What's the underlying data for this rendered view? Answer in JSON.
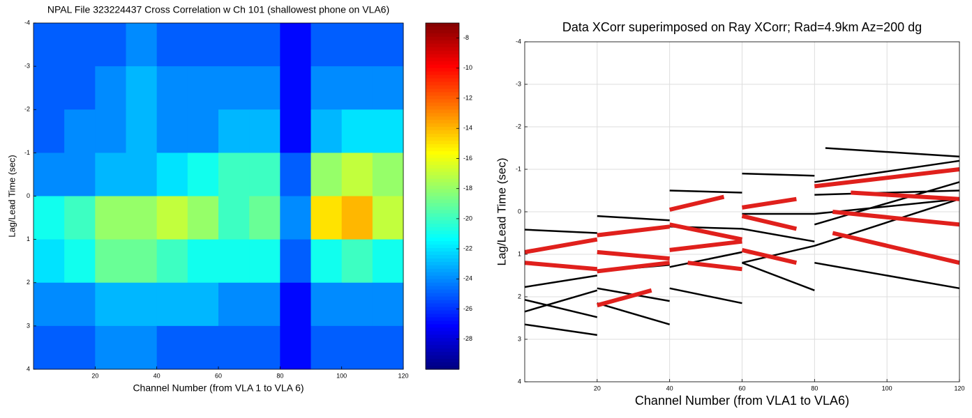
{
  "chart_data": [
    {
      "type": "heatmap",
      "title": "NPAL File 323224437 Cross Correlation w Ch 101 (shallowest phone on VLA6)",
      "xlabel": "Channel Number (from VLA 1 to VLA 6)",
      "ylabel": "Lag/Lead Time (sec)",
      "x": [
        5,
        15,
        25,
        35,
        45,
        55,
        65,
        75,
        85,
        95,
        105,
        115
      ],
      "y": [
        -3.5,
        -2.5,
        -1.5,
        -0.5,
        0.5,
        1.5,
        2.5,
        3.5
      ],
      "z": [
        [
          -25,
          -25,
          -25,
          -24,
          -25,
          -25,
          -25,
          -25,
          -27,
          -25,
          -25,
          -25
        ],
        [
          -25,
          -25,
          -24,
          -23,
          -24,
          -24,
          -24,
          -24,
          -27,
          -24,
          -24,
          -24
        ],
        [
          -25,
          -24,
          -24,
          -23,
          -24,
          -24,
          -23,
          -23,
          -27,
          -23,
          -22,
          -22
        ],
        [
          -24,
          -24,
          -23,
          -23,
          -22,
          -21,
          -20,
          -20,
          -25,
          -18,
          -17,
          -18
        ],
        [
          -21,
          -20,
          -18,
          -18,
          -17,
          -18,
          -20,
          -19,
          -24,
          -15,
          -14,
          -17
        ],
        [
          -22,
          -21,
          -19,
          -19,
          -20,
          -21,
          -21,
          -21,
          -25,
          -21,
          -20,
          -21
        ],
        [
          -24,
          -24,
          -23,
          -23,
          -23,
          -23,
          -24,
          -24,
          -27,
          -24,
          -24,
          -24
        ],
        [
          -25,
          -25,
          -24,
          -24,
          -25,
          -25,
          -25,
          -25,
          -27,
          -25,
          -25,
          -25
        ]
      ],
      "colormap": "jet",
      "clim": [
        -30,
        -7
      ],
      "cticks": [
        -8,
        -10,
        -12,
        -14,
        -16,
        -18,
        -20,
        -22,
        -24,
        -26,
        -28
      ],
      "xlim": [
        0,
        120
      ],
      "xticks": [
        20,
        40,
        60,
        80,
        100,
        120
      ],
      "ylim": [
        -4,
        4
      ],
      "yticks": [
        -4,
        -3,
        -2,
        -1,
        0,
        1,
        2,
        3,
        4
      ],
      "y_reversed": true
    },
    {
      "type": "line",
      "title": "Data XCorr superimposed on Ray XCorr; Rad=4.9km Az=200 dg",
      "xlabel": "Channel Number (from VLA1 to VLA6)",
      "ylabel": "Lag/Lead Time (sec)",
      "xlim": [
        0,
        120
      ],
      "xticks": [
        20,
        40,
        60,
        80,
        100,
        120
      ],
      "ylim": [
        -4,
        4
      ],
      "yticks": [
        -4,
        -3,
        -2,
        -1,
        0,
        1,
        2,
        3,
        4
      ],
      "y_reversed": true,
      "grid": true,
      "series": [
        {
          "color": "#000000",
          "linewidth": 2.5,
          "x": [
            0,
            20,
            null,
            0,
            20,
            null,
            0,
            20,
            null,
            0,
            20,
            null,
            0,
            20,
            null,
            20,
            40,
            null,
            20,
            40,
            null,
            20,
            40,
            null,
            20,
            40,
            null,
            40,
            60,
            null,
            40,
            60,
            null,
            40,
            60,
            null,
            40,
            60,
            null,
            60,
            80,
            null,
            60,
            80,
            null,
            60,
            80,
            null,
            60,
            80,
            null,
            60,
            80,
            null,
            83,
            120,
            null,
            80,
            120,
            null,
            80,
            120,
            null,
            80,
            120,
            null,
            80,
            120,
            null,
            80,
            120,
            null,
            80,
            120
          ],
          "values": [
            0.42,
            0.5,
            null,
            1.77,
            1.5,
            null,
            2.07,
            2.48,
            null,
            2.35,
            1.85,
            null,
            2.65,
            2.9,
            null,
            0.1,
            0.2,
            null,
            1.4,
            1.25,
            null,
            1.8,
            2.1,
            null,
            2.15,
            2.65,
            null,
            -0.5,
            -0.45,
            null,
            0.35,
            0.4,
            null,
            1.3,
            0.95,
            null,
            1.8,
            2.15,
            null,
            -0.9,
            -0.85,
            null,
            0.05,
            0.05,
            null,
            1.2,
            0.8,
            null,
            0.4,
            0.7,
            null,
            1.2,
            1.85,
            null,
            -1.5,
            -1.3,
            null,
            -0.7,
            -1.2,
            null,
            -0.4,
            -0.5,
            null,
            0.05,
            -0.3,
            null,
            0.3,
            -0.7,
            null,
            0.8,
            -0.3,
            null,
            1.2,
            1.8
          ]
        },
        {
          "color": "#e0201c",
          "linewidth": 6,
          "x": [
            0,
            20,
            null,
            0,
            20,
            null,
            20,
            40,
            null,
            20,
            40,
            null,
            20,
            40,
            null,
            20,
            35,
            null,
            40,
            55,
            null,
            40,
            60,
            null,
            40,
            60,
            null,
            45,
            60,
            null,
            60,
            75,
            null,
            60,
            75,
            null,
            60,
            75,
            null,
            80,
            120,
            null,
            85,
            120,
            null,
            90,
            120,
            null,
            85,
            120
          ],
          "values": [
            0.95,
            0.65,
            null,
            1.2,
            1.35,
            null,
            0.55,
            0.35,
            null,
            0.95,
            1.1,
            null,
            1.4,
            1.2,
            null,
            2.2,
            1.85,
            null,
            -0.05,
            -0.35,
            null,
            0.9,
            0.7,
            null,
            0.3,
            0.65,
            null,
            1.2,
            1.35,
            null,
            -0.1,
            -0.3,
            null,
            0.1,
            0.4,
            null,
            0.9,
            1.2,
            null,
            -0.6,
            -1.0,
            null,
            0.0,
            0.3,
            null,
            -0.45,
            -0.3,
            null,
            0.5,
            1.2
          ]
        }
      ]
    }
  ]
}
